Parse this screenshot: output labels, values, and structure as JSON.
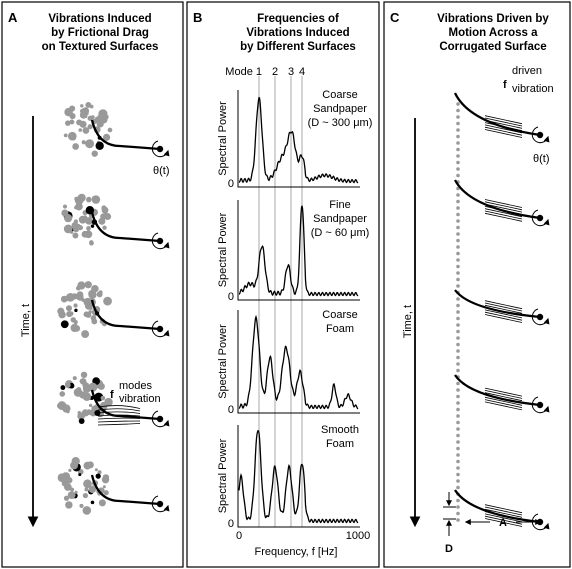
{
  "panels": [
    {
      "letter": "A",
      "title": [
        "Vibrations Induced",
        "by Frictional Drag",
        "on Textured Surfaces"
      ],
      "time_label": "Time, t",
      "angle_label": "θ(t)",
      "frequency": {
        "symbol": "f",
        "superscript": "modes",
        "subscript": "vibration"
      }
    },
    {
      "letter": "B",
      "title": [
        "Frequencies of",
        "Vibrations Induced",
        "by Different Surfaces"
      ],
      "mode_labels": [
        "Mode 1",
        "2",
        "3",
        "4"
      ],
      "plots": [
        {
          "surface": [
            "Coarse",
            "Sandpaper",
            "(D ~ 300 μm)"
          ],
          "y_label": "Spectral Power",
          "y_tick": "0"
        },
        {
          "surface": [
            "Fine",
            "Sandpaper",
            "(D ~ 60 μm)"
          ],
          "y_label": "Spectral Power",
          "y_tick": "0"
        },
        {
          "surface": [
            "Coarse",
            "Foam"
          ],
          "y_label": "Spectral Power",
          "y_tick": "0"
        },
        {
          "surface": [
            "Smooth",
            "Foam"
          ],
          "y_label": "Spectral Power",
          "y_tick": "0"
        }
      ],
      "x_ticks": [
        "0",
        "1000"
      ],
      "x_label": "Frequency, f [Hz]"
    },
    {
      "letter": "C",
      "title": [
        "Vibrations Driven by",
        "Motion Across a",
        "Corrugated Surface"
      ],
      "time_label": "Time, t",
      "angle_label": "θ(t)",
      "frequency": {
        "symbol": "f",
        "superscript": "driven",
        "subscript": "vibration"
      },
      "amplitude_label": "A",
      "spacing_label": "D"
    }
  ]
}
